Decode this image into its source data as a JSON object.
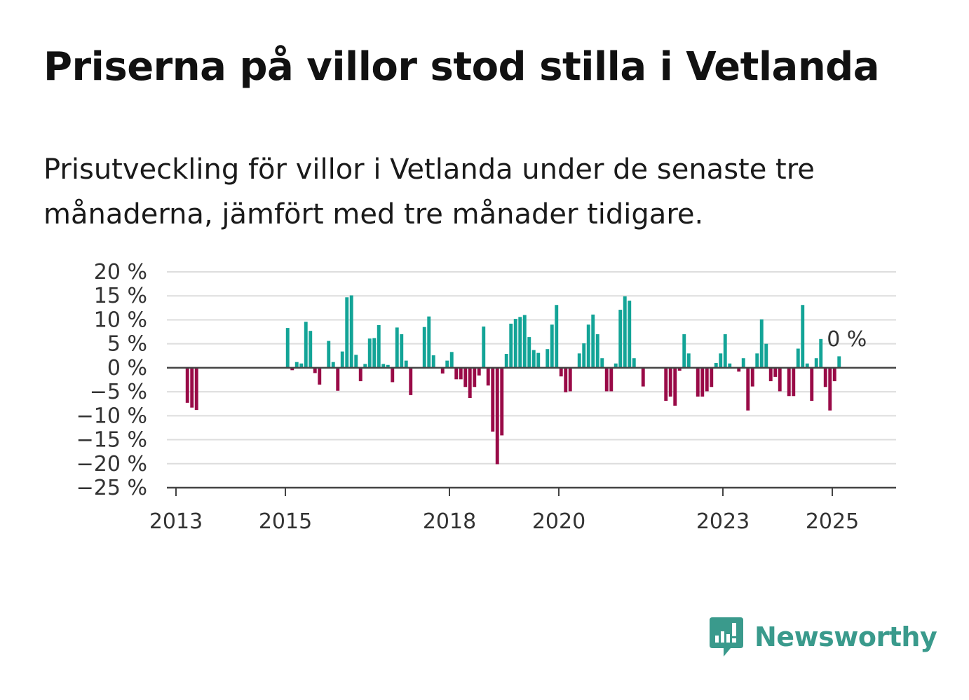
{
  "title": "Priserna på villor stod stilla i Vetlanda",
  "subtitle": "Prisutveckling för villor i Vetlanda under de senaste tre månaderna, jämfört med tre månader tidigare.",
  "brand": "Newsworthy",
  "colors": {
    "positive": "#13a497",
    "negative": "#990a47",
    "grid": "#dddddd",
    "axis": "#444444",
    "brand": "#3a9a8c"
  },
  "chart_data": {
    "type": "bar",
    "ylim": [
      -25,
      20
    ],
    "yticks": [
      20,
      15,
      10,
      5,
      0,
      -5,
      -10,
      -15,
      -20,
      -25
    ],
    "ytick_labels": [
      "20 %",
      "15 %",
      "10 %",
      "5 %",
      "0 %",
      "−5 %",
      "−10 %",
      "−15 %",
      "−20 %",
      "−25 %"
    ],
    "xticks": [
      "2013",
      "2015",
      "2018",
      "2020",
      "2023",
      "2025"
    ],
    "last_value_label": "0 %",
    "x": [
      "2013-03",
      "2013-04",
      "2013-05",
      "2015-01",
      "2015-02",
      "2015-03",
      "2015-04",
      "2015-05",
      "2015-06",
      "2015-07",
      "2015-08",
      "2015-09",
      "2015-10",
      "2015-11",
      "2015-12",
      "2016-01",
      "2016-02",
      "2016-03",
      "2016-04",
      "2016-05",
      "2016-06",
      "2016-07",
      "2016-08",
      "2016-09",
      "2016-10",
      "2016-11",
      "2016-12",
      "2017-01",
      "2017-02",
      "2017-03",
      "2017-04",
      "2017-05",
      "2017-06",
      "2017-07",
      "2017-08",
      "2017-09",
      "2017-10",
      "2017-11",
      "2017-12",
      "2018-01",
      "2018-02",
      "2018-03",
      "2018-04",
      "2018-05",
      "2018-06",
      "2018-07",
      "2018-08",
      "2018-09",
      "2018-10",
      "2018-11",
      "2018-12",
      "2019-01",
      "2019-02",
      "2019-03",
      "2019-04",
      "2019-05",
      "2019-06",
      "2019-07",
      "2019-08",
      "2019-09",
      "2019-10",
      "2019-11",
      "2019-12",
      "2020-01",
      "2020-02",
      "2020-03",
      "2020-04",
      "2020-05",
      "2020-06",
      "2020-07",
      "2020-08",
      "2020-09",
      "2020-10",
      "2020-11",
      "2020-12",
      "2021-01",
      "2021-02",
      "2021-03",
      "2021-04",
      "2021-05",
      "2021-06",
      "2021-07",
      "2021-08",
      "2021-12",
      "2022-01",
      "2022-02",
      "2022-03",
      "2022-04",
      "2022-05",
      "2022-06",
      "2022-07",
      "2022-08",
      "2022-09",
      "2022-10",
      "2022-11",
      "2022-12",
      "2023-01",
      "2023-02",
      "2023-03",
      "2023-04",
      "2023-05",
      "2023-06",
      "2023-07",
      "2023-08",
      "2023-09",
      "2023-10",
      "2023-11",
      "2023-12",
      "2024-01",
      "2024-02",
      "2024-03",
      "2024-04",
      "2024-05",
      "2024-06",
      "2024-07",
      "2024-08",
      "2024-09",
      "2024-10",
      "2024-11",
      "2024-12",
      "2025-01",
      "2025-02",
      "2025-03"
    ],
    "values": [
      -7.3,
      -8.3,
      -8.8,
      8.3,
      -0.5,
      1.2,
      0.9,
      9.6,
      7.7,
      -1.1,
      -3.5,
      0,
      5.6,
      1.2,
      -4.8,
      3.4,
      14.7,
      15.1,
      2.7,
      -2.8,
      0.8,
      6.1,
      6.2,
      8.9,
      0.8,
      0.6,
      -3.0,
      8.4,
      7.0,
      1.5,
      -5.7,
      0,
      0,
      8.5,
      10.7,
      2.6,
      0,
      -1.2,
      1.5,
      3.3,
      -2.4,
      -2.4,
      -4.0,
      -6.3,
      -4.0,
      -1.6,
      8.6,
      -3.7,
      -13.3,
      -20.1,
      -14.1,
      2.9,
      9.2,
      10.2,
      10.6,
      11.0,
      6.4,
      3.7,
      3.1,
      0,
      3.9,
      9.0,
      13.1,
      -1.8,
      -5.1,
      -4.9,
      0,
      3.0,
      5.1,
      9.0,
      11.1,
      7.0,
      2.0,
      -4.9,
      -4.9,
      0.9,
      12.1,
      14.9,
      14.0,
      2.0,
      0,
      -3.9,
      0,
      -6.9,
      -6.0,
      -7.9,
      -0.6,
      7.0,
      3.0,
      0,
      -6.0,
      -6.0,
      -4.9,
      -4.0,
      1.0,
      3.0,
      7.0,
      0.9,
      0,
      -0.8,
      2.0,
      -8.9,
      -3.9,
      3.0,
      10.1,
      5.0,
      -2.8,
      -1.9,
      -4.9,
      0,
      -5.9,
      -5.9,
      4.0,
      13.1,
      0.9,
      -6.9,
      2.0,
      6.0,
      -4.0,
      -8.9,
      -2.8,
      2.4,
      0
    ]
  }
}
